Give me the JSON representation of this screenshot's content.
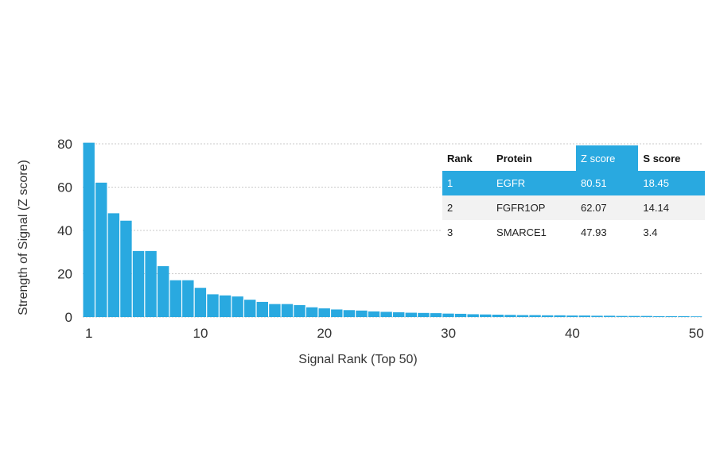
{
  "chart_data": {
    "type": "bar",
    "xlabel": "Signal Rank (Top 50)",
    "ylabel": "Strength of Signal (Z score)",
    "ylim": [
      0,
      80
    ],
    "yticks": [
      0,
      20,
      40,
      60,
      80
    ],
    "xticks": [
      1,
      10,
      20,
      30,
      40,
      50
    ],
    "grid": true,
    "bar_color": "#29a9e0",
    "x": [
      1,
      2,
      3,
      4,
      5,
      6,
      7,
      8,
      9,
      10,
      11,
      12,
      13,
      14,
      15,
      16,
      17,
      18,
      19,
      20,
      21,
      22,
      23,
      24,
      25,
      26,
      27,
      28,
      29,
      30,
      31,
      32,
      33,
      34,
      35,
      36,
      37,
      38,
      39,
      40,
      41,
      42,
      43,
      44,
      45,
      46,
      47,
      48,
      49,
      50
    ],
    "values": [
      80.51,
      62.07,
      47.93,
      44.5,
      30.5,
      30.5,
      23.5,
      17,
      17,
      13.5,
      10.5,
      10,
      9.5,
      8,
      7,
      6,
      6,
      5.5,
      4.5,
      4,
      3.5,
      3.2,
      3,
      2.6,
      2.4,
      2.2,
      2,
      1.9,
      1.8,
      1.6,
      1.5,
      1.3,
      1.2,
      1.1,
      1.0,
      0.9,
      0.9,
      0.8,
      0.8,
      0.7,
      0.7,
      0.6,
      0.6,
      0.5,
      0.5,
      0.5,
      0.4,
      0.4,
      0.4,
      0.3
    ]
  },
  "table": {
    "headers": [
      "Rank",
      "Protein",
      "Z score",
      "S score"
    ],
    "rows": [
      [
        "1",
        "EGFR",
        "80.51",
        "18.45"
      ],
      [
        "2",
        "FGFR1OP",
        "62.07",
        "14.14"
      ],
      [
        "3",
        "SMARCE1",
        "47.93",
        "3.4"
      ]
    ],
    "highlight_color": "#29a9e0"
  }
}
